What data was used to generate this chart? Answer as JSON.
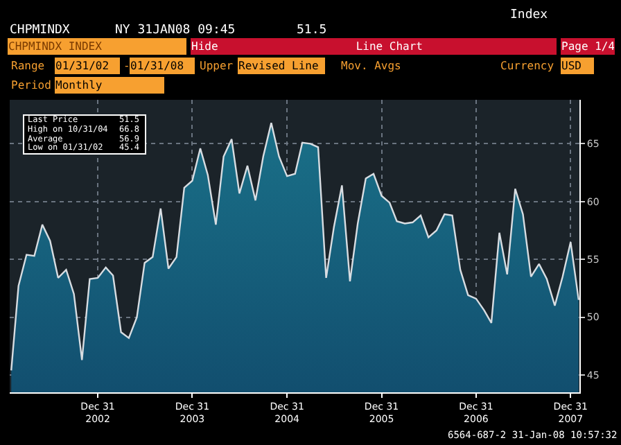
{
  "chart_data": {
    "type": "area",
    "annotations": [
      "CHPMINDX",
      "NY 31JAN08 09:45",
      "51.5",
      "Index",
      "CHPMINDX INDEX",
      "Hide",
      "Line Chart",
      "Page 1/4",
      "Range",
      "01/31/02",
      "-",
      "01/31/08",
      "Upper",
      "Revised Line",
      "Mov. Avgs",
      "Currency",
      "USD",
      "Period",
      "Monthly",
      "Last Price",
      "51.5",
      "High on 10/31/04",
      "66.8",
      "Average",
      "56.9",
      "Low on 01/31/02",
      "45.4",
      "6564-687-2 31-Jan-08 10:57:32"
    ],
    "x": [
      "2002-01-31",
      "2002-02-28",
      "2002-03-31",
      "2002-04-30",
      "2002-05-31",
      "2002-06-30",
      "2002-07-31",
      "2002-08-31",
      "2002-09-30",
      "2002-10-31",
      "2002-11-30",
      "2002-12-31",
      "2003-01-31",
      "2003-02-28",
      "2003-03-31",
      "2003-04-30",
      "2003-05-31",
      "2003-06-30",
      "2003-07-31",
      "2003-08-31",
      "2003-09-30",
      "2003-10-31",
      "2003-11-30",
      "2003-12-31",
      "2004-01-31",
      "2004-02-29",
      "2004-03-31",
      "2004-04-30",
      "2004-05-31",
      "2004-06-30",
      "2004-07-31",
      "2004-08-31",
      "2004-09-30",
      "2004-10-31",
      "2004-11-30",
      "2004-12-31",
      "2005-01-31",
      "2005-02-28",
      "2005-03-31",
      "2005-04-30",
      "2005-05-31",
      "2005-06-30",
      "2005-07-31",
      "2005-08-31",
      "2005-09-30",
      "2005-10-31",
      "2005-11-30",
      "2005-12-31",
      "2006-01-31",
      "2006-02-28",
      "2006-03-31",
      "2006-04-30",
      "2006-05-31",
      "2006-06-30",
      "2006-07-31",
      "2006-08-31",
      "2006-09-30",
      "2006-10-31",
      "2006-11-30",
      "2006-12-31",
      "2007-01-31",
      "2007-02-28",
      "2007-03-31",
      "2007-04-30",
      "2007-05-31",
      "2007-06-30",
      "2007-07-31",
      "2007-08-31",
      "2007-09-30",
      "2007-10-31",
      "2007-11-30",
      "2007-12-31",
      "2008-01-31"
    ],
    "series": [
      {
        "color": "#1a7088",
        "values": [
          45.4,
          52.7,
          55.4,
          55.3,
          58.0,
          56.6,
          53.4,
          54.1,
          52.0,
          46.3,
          53.3,
          53.4,
          54.3,
          53.6,
          48.7,
          48.2,
          50.0,
          54.7,
          55.2,
          59.4,
          54.2,
          55.2,
          61.2,
          61.8,
          64.6,
          62.3,
          58.0,
          63.9,
          65.4,
          60.7,
          63.1,
          60.1,
          63.9,
          66.8,
          63.9,
          62.2,
          62.4,
          65.1,
          65.0,
          64.7,
          53.4,
          57.8,
          61.4,
          53.1,
          58.1,
          62.0,
          62.4,
          60.5,
          59.9,
          58.3,
          58.1,
          58.2,
          58.8,
          56.9,
          57.5,
          58.9,
          58.8,
          54.1,
          51.9,
          51.6,
          50.6,
          49.5,
          57.3,
          53.7,
          61.1,
          58.9,
          53.5,
          54.6,
          53.3,
          51.0,
          53.5,
          56.5,
          51.5
        ]
      }
    ],
    "xlim": [
      "2002-01-25",
      "2008-02-03"
    ],
    "xticks": [
      {
        "value": "2002-12-31",
        "label": "Dec 31\n2002"
      },
      {
        "value": "2003-12-31",
        "label": "Dec 31\n2003"
      },
      {
        "value": "2004-12-31",
        "label": "Dec 31\n2004"
      },
      {
        "value": "2005-12-31",
        "label": "Dec 31\n2005"
      },
      {
        "value": "2006-12-31",
        "label": "Dec 31\n2006"
      },
      {
        "value": "2007-12-31",
        "label": "Dec 31\n2007"
      }
    ],
    "ylim": [
      43.5,
      68.8
    ],
    "yticks": [
      45,
      50,
      55,
      60,
      65
    ],
    "grid": true,
    "line_style": "solid"
  }
}
